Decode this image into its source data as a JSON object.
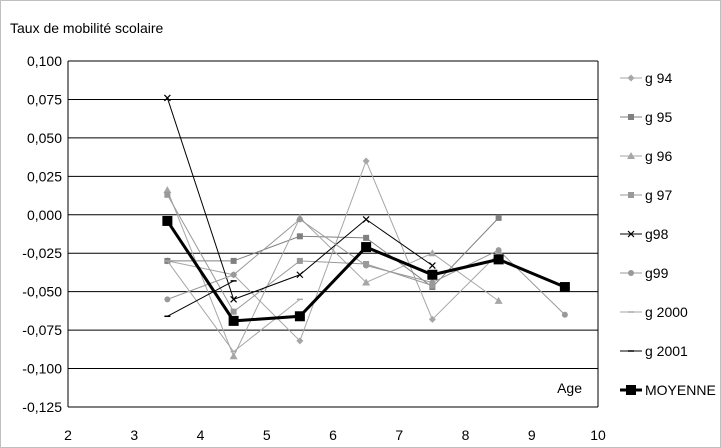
{
  "chart_data": {
    "type": "line",
    "ylabel": "Taux de mobilité scolaire",
    "xlabel": "Age",
    "xlim": [
      2,
      10
    ],
    "ylim": [
      -0.125,
      0.1
    ],
    "x_ticks": [
      "2",
      "3",
      "4",
      "5",
      "6",
      "7",
      "8",
      "9",
      "10"
    ],
    "y_ticks": [
      "0,100",
      "0,075",
      "0,050",
      "0,025",
      "0,000",
      "-0,025",
      "-0,050",
      "-0,075",
      "-0,100",
      "-0,125"
    ],
    "y_tick_values": [
      0.1,
      0.075,
      0.05,
      0.025,
      0.0,
      -0.025,
      -0.05,
      -0.075,
      -0.1,
      -0.125
    ],
    "grid": "horizontal",
    "legend_position": "right",
    "series": [
      {
        "name": "g 94",
        "marker": "diamond",
        "color": "#a6a6a6",
        "x": [
          3.5,
          4.5,
          5.5,
          6.5,
          7.5,
          8.5
        ],
        "values": [
          -0.03,
          -0.039,
          -0.082,
          0.035,
          -0.068,
          -0.025
        ]
      },
      {
        "name": "g 95",
        "marker": "square",
        "color": "#808080",
        "x": [
          3.5,
          4.5,
          5.5,
          6.5,
          7.5,
          8.5
        ],
        "values": [
          -0.03,
          -0.03,
          -0.014,
          -0.015,
          -0.047,
          -0.002
        ]
      },
      {
        "name": "g 96",
        "marker": "triangle",
        "color": "#a6a6a6",
        "x": [
          3.5,
          4.5,
          5.5,
          6.5,
          7.5,
          8.5
        ],
        "values": [
          0.016,
          -0.092,
          -0.002,
          -0.044,
          -0.025,
          -0.056
        ]
      },
      {
        "name": "g 97",
        "marker": "square",
        "color": "#999999",
        "x": [
          3.5,
          4.5,
          5.5,
          6.5,
          7.5
        ],
        "values": [
          0.013,
          -0.063,
          -0.03,
          -0.032,
          -0.046
        ]
      },
      {
        "name": "g98",
        "marker": "star",
        "color": "#000000",
        "x": [
          3.5,
          4.5,
          5.5,
          6.5,
          7.5
        ],
        "values": [
          0.076,
          -0.055,
          -0.039,
          -0.003,
          -0.033
        ]
      },
      {
        "name": "g99",
        "marker": "circle",
        "color": "#999999",
        "x": [
          3.5,
          4.5,
          5.5,
          6.5,
          7.5,
          8.5,
          9.5
        ],
        "values": [
          -0.055,
          -0.039,
          -0.003,
          -0.033,
          -0.044,
          -0.023,
          -0.065
        ]
      },
      {
        "name": "g 2000",
        "marker": "dash",
        "color": "#a6a6a6",
        "x": [
          3.5,
          4.5,
          5.5
        ],
        "values": [
          -0.03,
          -0.089,
          -0.055
        ]
      },
      {
        "name": "g 2001",
        "marker": "dash",
        "color": "#000000",
        "x": [
          3.5,
          4.5
        ],
        "values": [
          -0.066,
          -0.043
        ]
      },
      {
        "name": "MOYENNE",
        "marker": "square-large",
        "color": "#000000",
        "bold": true,
        "x": [
          3.5,
          4.5,
          5.5,
          6.5,
          7.5,
          8.5,
          9.5
        ],
        "values": [
          -0.004,
          -0.069,
          -0.066,
          -0.021,
          -0.039,
          -0.029,
          -0.047
        ]
      }
    ]
  }
}
